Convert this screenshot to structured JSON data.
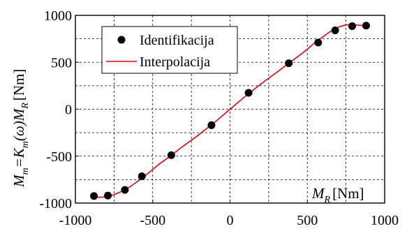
{
  "chart_data": {
    "type": "scatter",
    "x_label_var": "M",
    "x_label_sub": "R",
    "x_label_unit": "[Nm]",
    "y_label_main": "M",
    "y_label_sub": "m",
    "y_label_eq": "=K",
    "y_label_sub2": "m",
    "y_label_paren": "(ω)M",
    "y_label_sub3": "R",
    "y_label_unit": "[Nm]",
    "xlim": [
      -1000,
      1000
    ],
    "ylim": [
      -1000,
      1000
    ],
    "x_ticks": [
      -1000,
      -500,
      0,
      500,
      1000
    ],
    "x_tick_labels": [
      "-1000",
      "-500",
      "0",
      "500",
      "1000"
    ],
    "y_ticks": [
      -1000,
      -500,
      0,
      500,
      1000
    ],
    "y_tick_labels": [
      "-1000",
      "-500",
      "0",
      "500",
      "1000"
    ],
    "grid": true,
    "legend_position": "top-left",
    "series": [
      {
        "name": "Identifikacija",
        "kind": "points",
        "color": "#000000",
        "x": [
          -880,
          -790,
          -680,
          -570,
          -380,
          -120,
          120,
          380,
          570,
          680,
          790,
          880
        ],
        "y": [
          -925,
          -920,
          -860,
          -715,
          -490,
          -170,
          175,
          490,
          710,
          840,
          885,
          890
        ]
      },
      {
        "name": "Interpolacija",
        "kind": "line",
        "color": "#e8000b",
        "x": [
          -880,
          -850,
          -800,
          -750,
          -700,
          -650,
          -600,
          -550,
          -500,
          -450,
          -400,
          -300,
          -200,
          -100,
          0,
          100,
          200,
          300,
          400,
          450,
          500,
          550,
          600,
          650,
          700,
          750,
          800,
          850,
          880
        ],
        "y": [
          -930,
          -938,
          -935,
          -910,
          -875,
          -830,
          -770,
          -710,
          -640,
          -575,
          -515,
          -390,
          -270,
          -140,
          0,
          140,
          270,
          390,
          515,
          575,
          640,
          710,
          770,
          830,
          875,
          900,
          900,
          893,
          890
        ]
      }
    ]
  }
}
